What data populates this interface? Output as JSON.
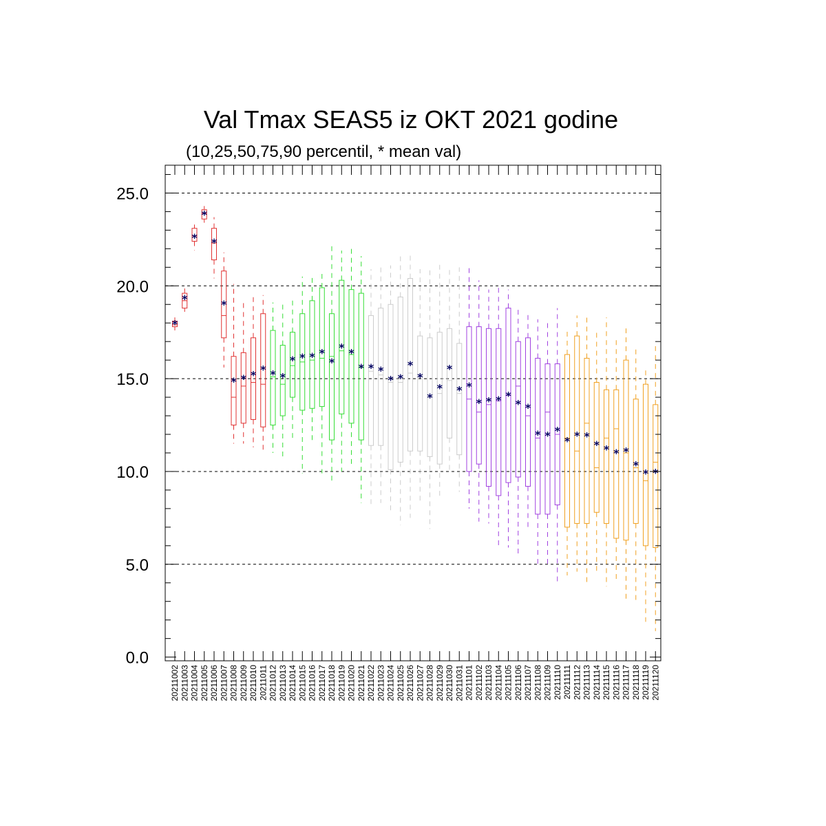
{
  "chart_data": {
    "type": "boxplot",
    "title": "Val Tmax SEAS5 iz OKT 2021 godine",
    "subtitle": "(10,25,50,75,90 percentil, * mean val)",
    "ylim": [
      -0.2,
      26.5
    ],
    "yticks": [
      "0.0",
      "5.0",
      "10.0",
      "15.0",
      "20.0",
      "25.0"
    ],
    "ytick_values": [
      0,
      5,
      10,
      15,
      20,
      25
    ],
    "gridlines": [
      5,
      10,
      15,
      20,
      25
    ],
    "mean_marker": "*",
    "colors": {
      "red": "#e03030",
      "green": "#33dd33",
      "gray": "#cccccc",
      "purple": "#a040e0",
      "orange": "#f0a020",
      "mean": "#000060"
    },
    "categories": [
      "20211002",
      "20211003",
      "20211004",
      "20211005",
      "20211006",
      "20211007",
      "20211008",
      "20211009",
      "20211010",
      "20211011",
      "20211012",
      "20211013",
      "20211014",
      "20211015",
      "20211016",
      "20211017",
      "20211018",
      "20211019",
      "20211020",
      "20211021",
      "20211022",
      "20211023",
      "20211024",
      "20211025",
      "20211026",
      "20211027",
      "20211028",
      "20211029",
      "20211030",
      "20211031",
      "20211101",
      "20211102",
      "20211103",
      "20211104",
      "20211105",
      "20211106",
      "20211107",
      "20211108",
      "20211109",
      "20211110",
      "20211111",
      "20211112",
      "20211113",
      "20211114",
      "20211115",
      "20211116",
      "20211117",
      "20211118",
      "20211119",
      "20211120"
    ],
    "series_colors": [
      "red",
      "red",
      "red",
      "red",
      "red",
      "red",
      "red",
      "red",
      "red",
      "red",
      "green",
      "green",
      "green",
      "green",
      "green",
      "green",
      "green",
      "green",
      "green",
      "green",
      "gray",
      "gray",
      "gray",
      "gray",
      "gray",
      "gray",
      "gray",
      "gray",
      "gray",
      "gray",
      "purple",
      "purple",
      "purple",
      "purple",
      "purple",
      "purple",
      "purple",
      "purple",
      "purple",
      "purple",
      "orange",
      "orange",
      "orange",
      "orange",
      "orange",
      "orange",
      "orange",
      "orange",
      "orange",
      "orange"
    ],
    "p10": [
      17.6,
      18.6,
      21.9,
      23.4,
      20.4,
      15.6,
      11.5,
      11.5,
      11.3,
      11.0,
      11.0,
      10.8,
      11.8,
      9.9,
      11.5,
      9.9,
      9.3,
      10.0,
      10.2,
      8.3,
      8.2,
      8.3,
      7.7,
      7.1,
      7.5,
      8.3,
      6.9,
      8.6,
      9.9,
      8.9,
      8.0,
      7.3,
      7.2,
      6.0,
      5.9,
      5.5,
      6.8,
      5.0,
      5.0,
      4.0,
      4.4,
      4.6,
      4.0,
      4.5,
      3.8,
      4.0,
      3.1,
      3.0,
      1.9,
      1.4
    ],
    "p25": [
      17.8,
      18.8,
      22.4,
      23.6,
      21.4,
      17.2,
      12.5,
      12.6,
      12.8,
      12.4,
      12.5,
      13.0,
      14.0,
      13.3,
      13.4,
      13.5,
      11.7,
      13.1,
      12.6,
      11.7,
      11.4,
      11.4,
      10.1,
      10.5,
      11.1,
      11.1,
      10.8,
      10.4,
      11.8,
      10.9,
      10.0,
      10.4,
      9.2,
      8.7,
      9.4,
      9.7,
      9.2,
      7.7,
      7.7,
      8.2,
      7.0,
      7.2,
      7.2,
      7.8,
      7.2,
      6.4,
      6.3,
      7.2,
      6.0,
      5.9
    ],
    "p50": [
      17.9,
      19.2,
      22.7,
      23.9,
      22.3,
      18.4,
      14.0,
      14.6,
      14.8,
      14.7,
      15.1,
      14.7,
      15.7,
      15.9,
      16.0,
      16.1,
      16.2,
      16.5,
      16.3,
      15.6,
      15.4,
      15.2,
      14.8,
      14.8,
      15.3,
      15.1,
      14.0,
      14.2,
      14.9,
      14.2,
      13.9,
      13.2,
      13.6,
      13.8,
      14.1,
      14.6,
      13.0,
      11.8,
      13.2,
      12.0,
      11.8,
      11.1,
      12.6,
      10.2,
      11.8,
      12.3,
      11.0,
      10.2,
      9.5,
      10.5
    ],
    "p75": [
      18.1,
      19.6,
      23.1,
      24.1,
      23.1,
      20.8,
      16.2,
      16.4,
      17.2,
      18.5,
      17.6,
      16.8,
      17.5,
      18.5,
      19.2,
      19.9,
      18.5,
      20.3,
      19.8,
      19.6,
      18.4,
      18.8,
      19.0,
      19.4,
      20.4,
      17.3,
      17.2,
      17.5,
      17.7,
      16.9,
      17.8,
      17.8,
      17.7,
      17.7,
      18.8,
      17.0,
      17.2,
      16.1,
      15.8,
      15.8,
      16.3,
      17.3,
      16.1,
      14.8,
      14.4,
      14.4,
      16.0,
      13.9,
      14.7,
      13.6
    ],
    "p90": [
      18.3,
      20.0,
      23.3,
      24.3,
      23.7,
      21.8,
      20.1,
      19.2,
      19.4,
      19.5,
      19.1,
      19.2,
      19.4,
      20.5,
      20.5,
      20.8,
      22.2,
      21.9,
      22.1,
      21.6,
      20.9,
      21.1,
      21.1,
      21.8,
      21.7,
      20.9,
      20.9,
      21.2,
      20.9,
      21.0,
      21.1,
      20.3,
      19.8,
      20.0,
      19.8,
      18.8,
      18.6,
      18.2,
      18.2,
      18.8,
      17.6,
      18.4,
      18.4,
      17.5,
      18.3,
      17.2,
      17.8,
      16.6,
      15.6,
      16.9
    ],
    "mean": [
      17.95,
      19.3,
      22.6,
      23.85,
      22.35,
      19.0,
      14.85,
      15.0,
      15.2,
      15.5,
      15.25,
      15.1,
      16.0,
      16.15,
      16.2,
      16.4,
      15.9,
      16.7,
      16.4,
      15.6,
      15.6,
      15.45,
      14.95,
      15.05,
      15.75,
      15.1,
      14.0,
      14.5,
      15.55,
      14.4,
      14.6,
      13.7,
      13.8,
      13.85,
      14.1,
      13.65,
      13.45,
      12.0,
      11.95,
      12.2,
      11.65,
      11.95,
      11.9,
      11.45,
      11.2,
      11.0,
      11.1,
      10.35,
      9.9,
      9.95
    ]
  }
}
